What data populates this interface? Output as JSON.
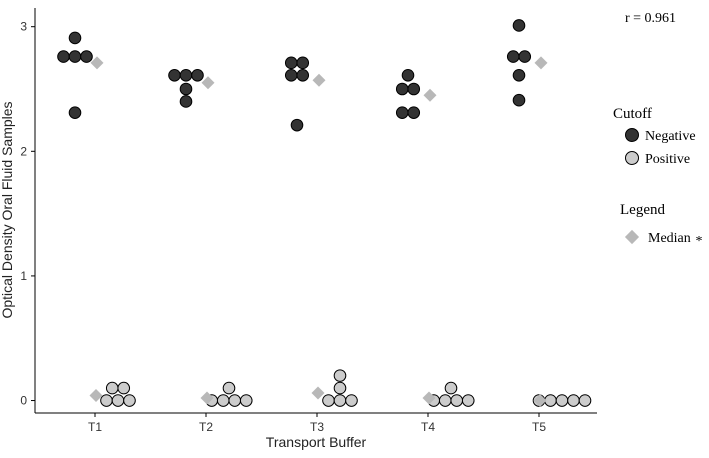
{
  "chart_data": {
    "type": "scatter",
    "title": "",
    "xlabel": "Transport Buffer",
    "ylabel": "Optical Density Oral Fluid Samples",
    "categories": [
      "T1",
      "T2",
      "T3",
      "T4",
      "T5"
    ],
    "y_ticks": [
      "0",
      "1",
      "2",
      "3"
    ],
    "ylim": [
      -0.1,
      3.15
    ],
    "grid": false,
    "legend_placement": "right",
    "annotation": "r = 0.961",
    "legend": {
      "cutoff_title": "Cutoff",
      "cutoff_items": [
        {
          "label": "Negative",
          "color": "#333333"
        },
        {
          "label": "Positive",
          "color": "#cccccc"
        }
      ],
      "median_title": "Legend",
      "median_label": "Median",
      "median_mark": "*",
      "median_color": "#b8b8b8"
    },
    "series": [
      {
        "name": "Negative",
        "color": "#333333",
        "points": [
          {
            "x": "T1",
            "y": 2.91
          },
          {
            "x": "T1",
            "y": 2.76
          },
          {
            "x": "T1",
            "y": 2.76
          },
          {
            "x": "T1",
            "y": 2.76
          },
          {
            "x": "T1",
            "y": 2.31
          },
          {
            "x": "T2",
            "y": 2.61
          },
          {
            "x": "T2",
            "y": 2.61
          },
          {
            "x": "T2",
            "y": 2.61
          },
          {
            "x": "T2",
            "y": 2.5
          },
          {
            "x": "T2",
            "y": 2.4
          },
          {
            "x": "T3",
            "y": 2.71
          },
          {
            "x": "T3",
            "y": 2.71
          },
          {
            "x": "T3",
            "y": 2.61
          },
          {
            "x": "T3",
            "y": 2.61
          },
          {
            "x": "T3",
            "y": 2.21
          },
          {
            "x": "T4",
            "y": 2.61
          },
          {
            "x": "T4",
            "y": 2.5
          },
          {
            "x": "T4",
            "y": 2.5
          },
          {
            "x": "T4",
            "y": 2.31
          },
          {
            "x": "T4",
            "y": 2.31
          },
          {
            "x": "T5",
            "y": 3.01
          },
          {
            "x": "T5",
            "y": 2.76
          },
          {
            "x": "T5",
            "y": 2.76
          },
          {
            "x": "T5",
            "y": 2.61
          },
          {
            "x": "T5",
            "y": 2.41
          }
        ]
      },
      {
        "name": "Positive",
        "color": "#cccccc",
        "points": [
          {
            "x": "T1",
            "y": 0.1
          },
          {
            "x": "T1",
            "y": 0.1
          },
          {
            "x": "T1",
            "y": 0.0
          },
          {
            "x": "T1",
            "y": 0.0
          },
          {
            "x": "T1",
            "y": 0.0
          },
          {
            "x": "T2",
            "y": 0.1
          },
          {
            "x": "T2",
            "y": 0.0
          },
          {
            "x": "T2",
            "y": 0.0
          },
          {
            "x": "T2",
            "y": 0.0
          },
          {
            "x": "T2",
            "y": 0.0
          },
          {
            "x": "T3",
            "y": 0.2
          },
          {
            "x": "T3",
            "y": 0.1
          },
          {
            "x": "T3",
            "y": 0.0
          },
          {
            "x": "T3",
            "y": 0.0
          },
          {
            "x": "T3",
            "y": 0.0
          },
          {
            "x": "T4",
            "y": 0.1
          },
          {
            "x": "T4",
            "y": 0.0
          },
          {
            "x": "T4",
            "y": 0.0
          },
          {
            "x": "T4",
            "y": 0.0
          },
          {
            "x": "T4",
            "y": 0.0
          },
          {
            "x": "T5",
            "y": 0.0
          },
          {
            "x": "T5",
            "y": 0.0
          },
          {
            "x": "T5",
            "y": 0.0
          },
          {
            "x": "T5",
            "y": 0.0
          },
          {
            "x": "T5",
            "y": 0.0
          }
        ]
      }
    ],
    "medians": {
      "negative": [
        {
          "x": "T1",
          "y": 2.71
        },
        {
          "x": "T2",
          "y": 2.55
        },
        {
          "x": "T3",
          "y": 2.57
        },
        {
          "x": "T4",
          "y": 2.45
        },
        {
          "x": "T5",
          "y": 2.71
        }
      ],
      "positive": [
        {
          "x": "T1",
          "y": 0.04
        },
        {
          "x": "T2",
          "y": 0.02
        },
        {
          "x": "T3",
          "y": 0.06
        },
        {
          "x": "T4",
          "y": 0.02
        },
        {
          "x": "T5",
          "y": 0.0
        }
      ]
    }
  }
}
